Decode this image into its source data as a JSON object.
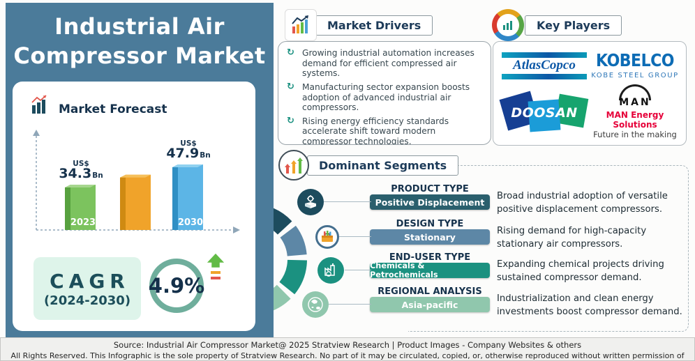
{
  "page": {
    "title_line1": "Industrial Air",
    "title_line2": "Compressor Market"
  },
  "forecast": {
    "heading": "Market Forecast",
    "cagr": {
      "label": "CAGR",
      "period": "(2024-2030)",
      "value": "4.9%"
    }
  },
  "chart_data": {
    "type": "bar",
    "title": "Market Forecast",
    "categories": [
      "2023",
      "",
      "2030"
    ],
    "values": [
      34.3,
      41.0,
      47.9
    ],
    "show_value": [
      true,
      false,
      true
    ],
    "unit_prefix": "US$",
    "unit_suffix": "Bn",
    "ylim": [
      0,
      55
    ],
    "grid": false,
    "note": "middle bar is unlabeled in source; value estimated from bar height",
    "bar_colors": [
      {
        "side": "#57a13f",
        "face": "#7cc35e",
        "top": "#a6d68e"
      },
      {
        "side": "#cf8a12",
        "face": "#f0a32a",
        "top": "#f6c05a"
      },
      {
        "side": "#2f8fc4",
        "face": "#5cb5e6",
        "top": "#90d1f0"
      }
    ]
  },
  "market_drivers": {
    "heading": "Market Drivers",
    "items": [
      "Growing industrial automation increases demand for efficient compressed air systems.",
      "Manufacturing sector expansion boosts adoption of advanced industrial air compressors.",
      "Rising energy efficiency standards accelerate shift toward modern compressor technologies."
    ]
  },
  "key_players": {
    "heading": "Key Players",
    "logos": {
      "atlas_copco": {
        "name": "AtlasCopco"
      },
      "kobelco": {
        "name": "KOBELCO",
        "subtitle": "KOBE STEEL GROUP"
      },
      "doosan": {
        "name": "DOOSAN"
      },
      "man": {
        "name": "MAN",
        "line1": "MAN Energy Solutions",
        "line2": "Future in the making"
      }
    }
  },
  "dominant_segments": {
    "heading": "Dominant Segments",
    "rows": [
      {
        "category": "PRODUCT TYPE",
        "value": "Positive Displacement",
        "description": "Broad industrial adoption of versatile positive displacement compressors.",
        "color": "#2a5f6d"
      },
      {
        "category": "DESIGN TYPE",
        "value": "Stationary",
        "description": "Rising demand for high-capacity stationary air compressors.",
        "color": "#5d87a6"
      },
      {
        "category": "END-USER TYPE",
        "value": "Chemicals & Petrochemicals",
        "description": "Expanding chemical projects driving sustained compressor demand.",
        "color": "#1b9180"
      },
      {
        "category": "REGIONAL ANALYSIS",
        "value": "Asia-pacific",
        "description": "Industrialization and clean energy investments boost compressor demand.",
        "color": "#90c7ad"
      }
    ]
  },
  "footer": {
    "line1": "Source:  Industrial Air Compressor Market@ 2025 Stratview Research | Product Images  - Company Websites & others",
    "line2": "All Rights Reserved. This Infographic is the sole property of Stratview Research. No part of it may be circulated, copied, or, otherwise reproduced without written permission of Stratview Research."
  },
  "colors": {
    "panel_blue": "#4b7b9a",
    "navy_text": "#16324c",
    "accent_teal": "#1b9180",
    "cagr_ring": "#6fae9c",
    "mint": "#def4ea",
    "donut_segments": [
      "#1d4c5e",
      "#5d87a6",
      "#1b9180",
      "#90c7ad"
    ]
  }
}
